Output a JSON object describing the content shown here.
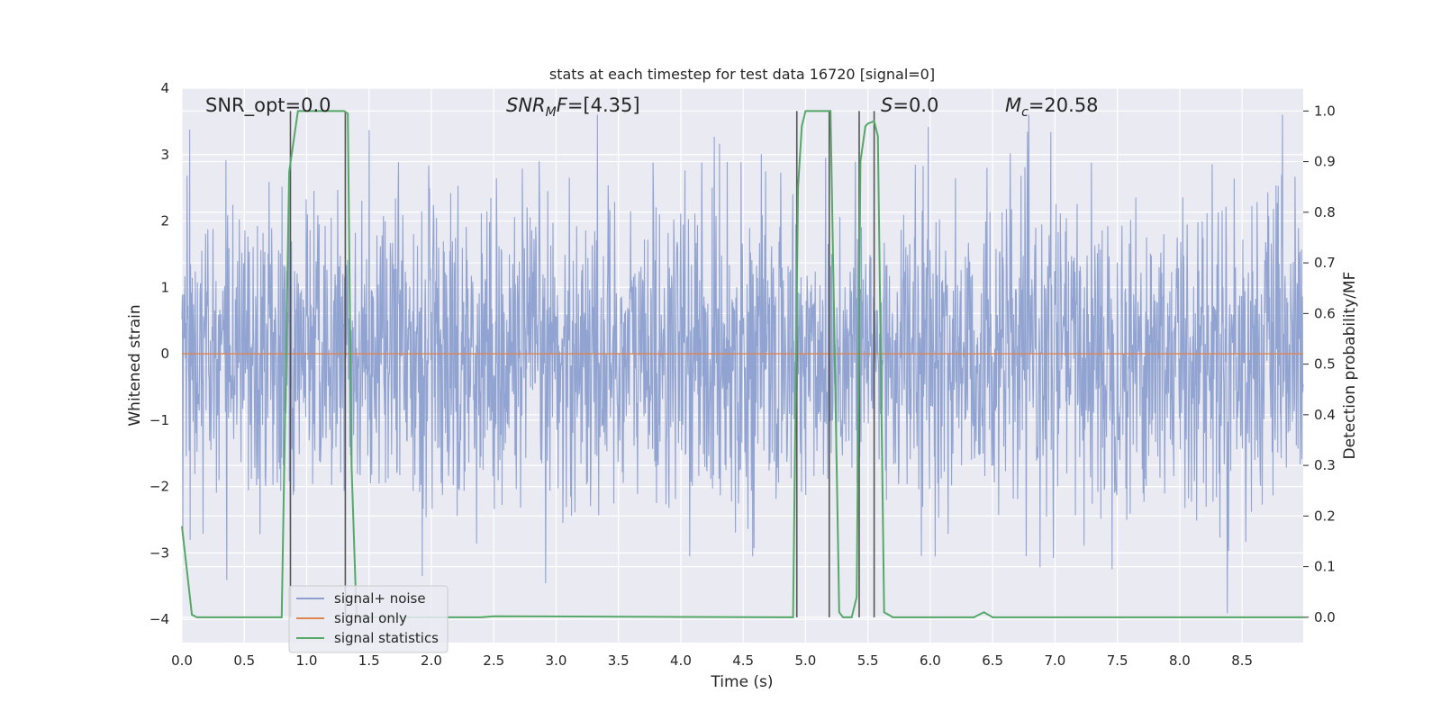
{
  "chart_data": {
    "type": "line",
    "title": "stats at each timestep for test data 16720 [signal=0]",
    "xlabel": "Time (s)",
    "ylabel": "Whitened strain",
    "y2label": "Detection probability/MF",
    "xlim": [
      0,
      8.99
    ],
    "ylim": [
      -4.35,
      4.0
    ],
    "y2lim": [
      -0.05,
      1.045
    ],
    "xticks": [
      "0.0",
      "0.5",
      "1.0",
      "1.5",
      "2.0",
      "2.5",
      "3.0",
      "3.5",
      "4.0",
      "4.5",
      "5.0",
      "5.5",
      "6.0",
      "6.5",
      "7.0",
      "7.5",
      "8.0",
      "8.5"
    ],
    "yticks": [
      "4",
      "3",
      "2",
      "1",
      "0",
      "−1",
      "−2",
      "−3",
      "−4"
    ],
    "y2ticks": [
      "1.0",
      "0.9",
      "0.8",
      "0.7",
      "0.6",
      "0.5",
      "0.4",
      "0.3",
      "0.2",
      "0.1",
      "0.0"
    ],
    "annotations": {
      "snr_opt": "SNR_opt=0.0",
      "snr_mf_main": "SNR",
      "snr_mf_sub": "M",
      "snr_mf_rest": "F=[4.35]",
      "s_italic": "S",
      "s_rest": "=0.0",
      "mc_main": "M",
      "mc_sub": "c",
      "mc_rest": "=20.58"
    },
    "legend": {
      "placement": "lower-left",
      "entries": [
        "signal+ noise",
        "signal only",
        "signal statistics"
      ]
    },
    "grid": true,
    "colors": {
      "noise": "#8c9fcf",
      "signal_only": "#dd8452",
      "stats": "#55a868",
      "marker": "#555555",
      "background": "#eaeaf2"
    },
    "series": [
      {
        "name": "signal+ noise",
        "axis": "left",
        "envelope": "random whitened noise, peaks roughly ±2 to ±3.6 over 0–8.99 s",
        "t_range": [
          0,
          8.99
        ]
      },
      {
        "name": "signal only",
        "axis": "left",
        "x": [
          0,
          8.99
        ],
        "y": [
          0,
          0
        ]
      },
      {
        "name": "signal statistics",
        "axis": "right",
        "x": [
          0,
          0.08,
          0.12,
          0.8,
          0.86,
          0.93,
          0.98,
          1.3,
          1.33,
          1.36,
          1.4,
          2.4,
          2.5,
          4.9,
          4.94,
          4.97,
          5.0,
          5.2,
          5.27,
          5.3,
          5.37,
          5.41,
          5.44,
          5.48,
          5.5,
          5.55,
          5.58,
          5.63,
          5.7,
          6.35,
          6.43,
          6.5,
          6.55,
          8.99
        ],
        "y": [
          0.18,
          0.005,
          0.0,
          0.0,
          0.88,
          1.0,
          1.0,
          1.0,
          0.995,
          0.3,
          0.0,
          0.0,
          0.002,
          0.0,
          0.85,
          0.97,
          1.0,
          1.0,
          0.01,
          0.0,
          0.0,
          0.04,
          0.9,
          0.97,
          0.975,
          0.98,
          0.95,
          0.01,
          0.0,
          0.0,
          0.01,
          0.0,
          0.0,
          0.0
        ]
      }
    ],
    "vertical_markers_x": [
      0.87,
      1.31,
      4.93,
      5.19,
      5.43,
      5.55
    ]
  }
}
